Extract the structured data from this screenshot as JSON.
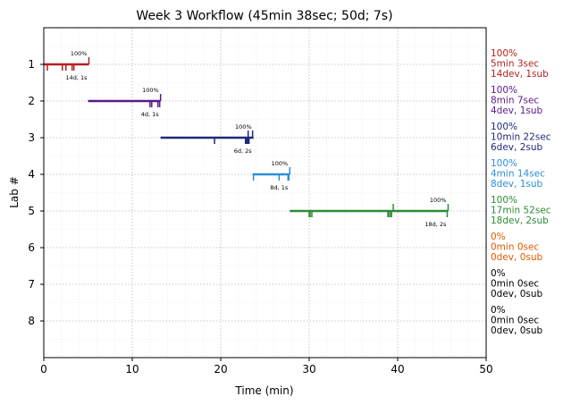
{
  "chart_data": {
    "type": "timeline",
    "title": "Week 3 Workflow (45min 38sec; 50d; 7s)",
    "xlabel": "Time (min)",
    "ylabel": "Lab #",
    "xlim": [
      0,
      50
    ],
    "ylim": [
      9,
      0
    ],
    "xticks": [
      "0",
      "10",
      "20",
      "30",
      "40",
      "50"
    ],
    "xtick_values": [
      0,
      10,
      20,
      30,
      40,
      50
    ],
    "grid": "dotted major and minor",
    "labs": [
      {
        "lab": 1,
        "tick": "1",
        "color": "#b22222",
        "start": 0.0,
        "end": 5.1,
        "dev_marks": [
          0.4,
          2.1,
          2.5,
          3.2,
          3.4
        ],
        "sub_marks": [
          5.1
        ],
        "percent_label": "100%",
        "counts_label": "14d, 1s",
        "summary": [
          "100%",
          "5min 3sec",
          "14dev, 1sub"
        ]
      },
      {
        "lab": 2,
        "tick": "2",
        "color": "#5a1a8a",
        "start": 5.0,
        "end": 13.2,
        "dev_marks": [
          12.0,
          12.2,
          12.9,
          13.1
        ],
        "sub_marks": [
          13.2
        ],
        "percent_label": "100%",
        "counts_label": "4d, 1s",
        "summary": [
          "100%",
          "8min 7sec",
          "4dev, 1sub"
        ]
      },
      {
        "lab": 3,
        "tick": "3",
        "color": "#1f2a7a",
        "start": 13.2,
        "end": 23.7,
        "dev_marks": [
          19.3,
          22.8,
          22.9,
          23.0,
          23.1,
          23.2
        ],
        "sub_marks": [
          23.1,
          23.6
        ],
        "percent_label": "100%",
        "counts_label": "6d, 2s",
        "summary": [
          "100%",
          "10min 22sec",
          "6dev, 2sub"
        ]
      },
      {
        "lab": 4,
        "tick": "4",
        "color": "#2a8fd6",
        "start": 23.6,
        "end": 27.8,
        "dev_marks": [
          23.7,
          26.6,
          27.6,
          27.7
        ],
        "sub_marks": [
          27.8
        ],
        "percent_label": "100%",
        "counts_label": "8d, 1s",
        "summary": [
          "100%",
          "4min 14sec",
          "8dev, 1sub"
        ]
      },
      {
        "lab": 5,
        "tick": "5",
        "color": "#2e8b37",
        "start": 27.8,
        "end": 45.7,
        "dev_marks": [
          30.0,
          30.1,
          30.3,
          38.9,
          39.0,
          39.2,
          39.3,
          45.6
        ],
        "sub_marks": [
          39.5,
          45.7
        ],
        "percent_label": "100%",
        "counts_label": "18d, 2s",
        "summary": [
          "100%",
          "17min 52sec",
          "18dev, 2sub"
        ]
      },
      {
        "lab": 6,
        "tick": "6",
        "color": "#e05a00",
        "summary": [
          "0%",
          "0min 0sec",
          "0dev, 0sub"
        ]
      },
      {
        "lab": 7,
        "tick": "7",
        "color": "#000000",
        "summary": [
          "0%",
          "0min 0sec",
          "0dev, 0sub"
        ]
      },
      {
        "lab": 8,
        "tick": "8",
        "color": "#000000",
        "summary": [
          "0%",
          "0min 0sec",
          "0dev, 0sub"
        ]
      }
    ]
  }
}
